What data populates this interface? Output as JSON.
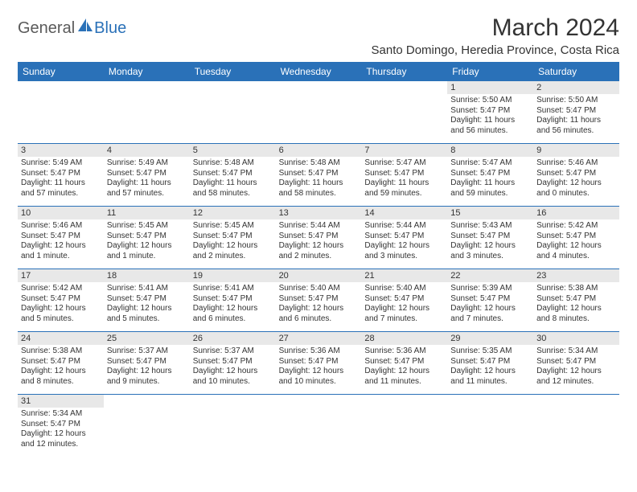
{
  "logo": {
    "text1": "General",
    "text2": "Blue"
  },
  "title": "March 2024",
  "location": "Santo Domingo, Heredia Province, Costa Rica",
  "colors": {
    "header_bg": "#2a71b8",
    "header_text": "#ffffff",
    "daynum_bg": "#e8e8e8",
    "border": "#2a71b8",
    "text": "#333333"
  },
  "day_headers": [
    "Sunday",
    "Monday",
    "Tuesday",
    "Wednesday",
    "Thursday",
    "Friday",
    "Saturday"
  ],
  "weeks": [
    [
      {
        "day": "",
        "sunrise": "",
        "sunset": "",
        "daylight": ""
      },
      {
        "day": "",
        "sunrise": "",
        "sunset": "",
        "daylight": ""
      },
      {
        "day": "",
        "sunrise": "",
        "sunset": "",
        "daylight": ""
      },
      {
        "day": "",
        "sunrise": "",
        "sunset": "",
        "daylight": ""
      },
      {
        "day": "",
        "sunrise": "",
        "sunset": "",
        "daylight": ""
      },
      {
        "day": "1",
        "sunrise": "Sunrise: 5:50 AM",
        "sunset": "Sunset: 5:47 PM",
        "daylight": "Daylight: 11 hours and 56 minutes."
      },
      {
        "day": "2",
        "sunrise": "Sunrise: 5:50 AM",
        "sunset": "Sunset: 5:47 PM",
        "daylight": "Daylight: 11 hours and 56 minutes."
      }
    ],
    [
      {
        "day": "3",
        "sunrise": "Sunrise: 5:49 AM",
        "sunset": "Sunset: 5:47 PM",
        "daylight": "Daylight: 11 hours and 57 minutes."
      },
      {
        "day": "4",
        "sunrise": "Sunrise: 5:49 AM",
        "sunset": "Sunset: 5:47 PM",
        "daylight": "Daylight: 11 hours and 57 minutes."
      },
      {
        "day": "5",
        "sunrise": "Sunrise: 5:48 AM",
        "sunset": "Sunset: 5:47 PM",
        "daylight": "Daylight: 11 hours and 58 minutes."
      },
      {
        "day": "6",
        "sunrise": "Sunrise: 5:48 AM",
        "sunset": "Sunset: 5:47 PM",
        "daylight": "Daylight: 11 hours and 58 minutes."
      },
      {
        "day": "7",
        "sunrise": "Sunrise: 5:47 AM",
        "sunset": "Sunset: 5:47 PM",
        "daylight": "Daylight: 11 hours and 59 minutes."
      },
      {
        "day": "8",
        "sunrise": "Sunrise: 5:47 AM",
        "sunset": "Sunset: 5:47 PM",
        "daylight": "Daylight: 11 hours and 59 minutes."
      },
      {
        "day": "9",
        "sunrise": "Sunrise: 5:46 AM",
        "sunset": "Sunset: 5:47 PM",
        "daylight": "Daylight: 12 hours and 0 minutes."
      }
    ],
    [
      {
        "day": "10",
        "sunrise": "Sunrise: 5:46 AM",
        "sunset": "Sunset: 5:47 PM",
        "daylight": "Daylight: 12 hours and 1 minute."
      },
      {
        "day": "11",
        "sunrise": "Sunrise: 5:45 AM",
        "sunset": "Sunset: 5:47 PM",
        "daylight": "Daylight: 12 hours and 1 minute."
      },
      {
        "day": "12",
        "sunrise": "Sunrise: 5:45 AM",
        "sunset": "Sunset: 5:47 PM",
        "daylight": "Daylight: 12 hours and 2 minutes."
      },
      {
        "day": "13",
        "sunrise": "Sunrise: 5:44 AM",
        "sunset": "Sunset: 5:47 PM",
        "daylight": "Daylight: 12 hours and 2 minutes."
      },
      {
        "day": "14",
        "sunrise": "Sunrise: 5:44 AM",
        "sunset": "Sunset: 5:47 PM",
        "daylight": "Daylight: 12 hours and 3 minutes."
      },
      {
        "day": "15",
        "sunrise": "Sunrise: 5:43 AM",
        "sunset": "Sunset: 5:47 PM",
        "daylight": "Daylight: 12 hours and 3 minutes."
      },
      {
        "day": "16",
        "sunrise": "Sunrise: 5:42 AM",
        "sunset": "Sunset: 5:47 PM",
        "daylight": "Daylight: 12 hours and 4 minutes."
      }
    ],
    [
      {
        "day": "17",
        "sunrise": "Sunrise: 5:42 AM",
        "sunset": "Sunset: 5:47 PM",
        "daylight": "Daylight: 12 hours and 5 minutes."
      },
      {
        "day": "18",
        "sunrise": "Sunrise: 5:41 AM",
        "sunset": "Sunset: 5:47 PM",
        "daylight": "Daylight: 12 hours and 5 minutes."
      },
      {
        "day": "19",
        "sunrise": "Sunrise: 5:41 AM",
        "sunset": "Sunset: 5:47 PM",
        "daylight": "Daylight: 12 hours and 6 minutes."
      },
      {
        "day": "20",
        "sunrise": "Sunrise: 5:40 AM",
        "sunset": "Sunset: 5:47 PM",
        "daylight": "Daylight: 12 hours and 6 minutes."
      },
      {
        "day": "21",
        "sunrise": "Sunrise: 5:40 AM",
        "sunset": "Sunset: 5:47 PM",
        "daylight": "Daylight: 12 hours and 7 minutes."
      },
      {
        "day": "22",
        "sunrise": "Sunrise: 5:39 AM",
        "sunset": "Sunset: 5:47 PM",
        "daylight": "Daylight: 12 hours and 7 minutes."
      },
      {
        "day": "23",
        "sunrise": "Sunrise: 5:38 AM",
        "sunset": "Sunset: 5:47 PM",
        "daylight": "Daylight: 12 hours and 8 minutes."
      }
    ],
    [
      {
        "day": "24",
        "sunrise": "Sunrise: 5:38 AM",
        "sunset": "Sunset: 5:47 PM",
        "daylight": "Daylight: 12 hours and 8 minutes."
      },
      {
        "day": "25",
        "sunrise": "Sunrise: 5:37 AM",
        "sunset": "Sunset: 5:47 PM",
        "daylight": "Daylight: 12 hours and 9 minutes."
      },
      {
        "day": "26",
        "sunrise": "Sunrise: 5:37 AM",
        "sunset": "Sunset: 5:47 PM",
        "daylight": "Daylight: 12 hours and 10 minutes."
      },
      {
        "day": "27",
        "sunrise": "Sunrise: 5:36 AM",
        "sunset": "Sunset: 5:47 PM",
        "daylight": "Daylight: 12 hours and 10 minutes."
      },
      {
        "day": "28",
        "sunrise": "Sunrise: 5:36 AM",
        "sunset": "Sunset: 5:47 PM",
        "daylight": "Daylight: 12 hours and 11 minutes."
      },
      {
        "day": "29",
        "sunrise": "Sunrise: 5:35 AM",
        "sunset": "Sunset: 5:47 PM",
        "daylight": "Daylight: 12 hours and 11 minutes."
      },
      {
        "day": "30",
        "sunrise": "Sunrise: 5:34 AM",
        "sunset": "Sunset: 5:47 PM",
        "daylight": "Daylight: 12 hours and 12 minutes."
      }
    ],
    [
      {
        "day": "31",
        "sunrise": "Sunrise: 5:34 AM",
        "sunset": "Sunset: 5:47 PM",
        "daylight": "Daylight: 12 hours and 12 minutes."
      },
      {
        "day": "",
        "sunrise": "",
        "sunset": "",
        "daylight": ""
      },
      {
        "day": "",
        "sunrise": "",
        "sunset": "",
        "daylight": ""
      },
      {
        "day": "",
        "sunrise": "",
        "sunset": "",
        "daylight": ""
      },
      {
        "day": "",
        "sunrise": "",
        "sunset": "",
        "daylight": ""
      },
      {
        "day": "",
        "sunrise": "",
        "sunset": "",
        "daylight": ""
      },
      {
        "day": "",
        "sunrise": "",
        "sunset": "",
        "daylight": ""
      }
    ]
  ]
}
